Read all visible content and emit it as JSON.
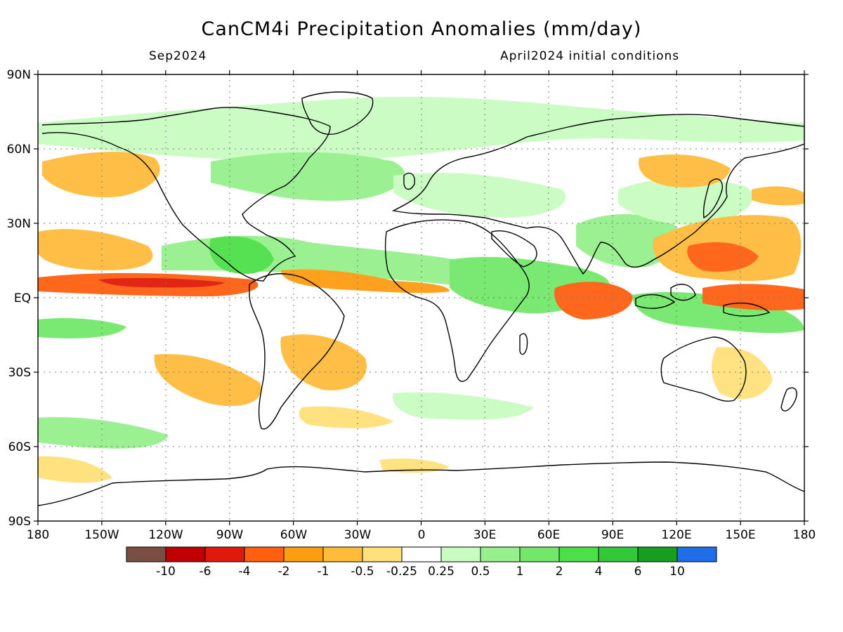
{
  "title": "CanCM4i Precipitation Anomalies (mm/day)",
  "subtitle_left": "Sep2024",
  "subtitle_right": "April2024 initial conditions",
  "map": {
    "lat_ticks": [
      "90N",
      "60N",
      "30N",
      "EQ",
      "30S",
      "60S",
      "90S"
    ],
    "lon_ticks": [
      "180",
      "150W",
      "120W",
      "90W",
      "60W",
      "30W",
      "0",
      "30E",
      "60E",
      "90E",
      "120E",
      "150E",
      "180"
    ],
    "projection": "cylindrical equidistant",
    "lon_range": [
      -180,
      180
    ],
    "lat_range": [
      -90,
      90
    ],
    "grid": "dotted"
  },
  "colorbar": {
    "colors": [
      "#7a4e40",
      "#c00000",
      "#e01a0a",
      "#ff6010",
      "#ff9d12",
      "#ffbb3c",
      "#ffe07a",
      "#ffffff",
      "#c8fcc0",
      "#96f08c",
      "#72e86a",
      "#4ce048",
      "#32c83a",
      "#14a01e",
      "#1e6ee8"
    ],
    "labels": [
      "-10",
      "-6",
      "-4",
      "-2",
      "-1",
      "-0.5",
      "-0.25",
      "0.25",
      "0.5",
      "1",
      "2",
      "4",
      "6",
      "10"
    ]
  }
}
